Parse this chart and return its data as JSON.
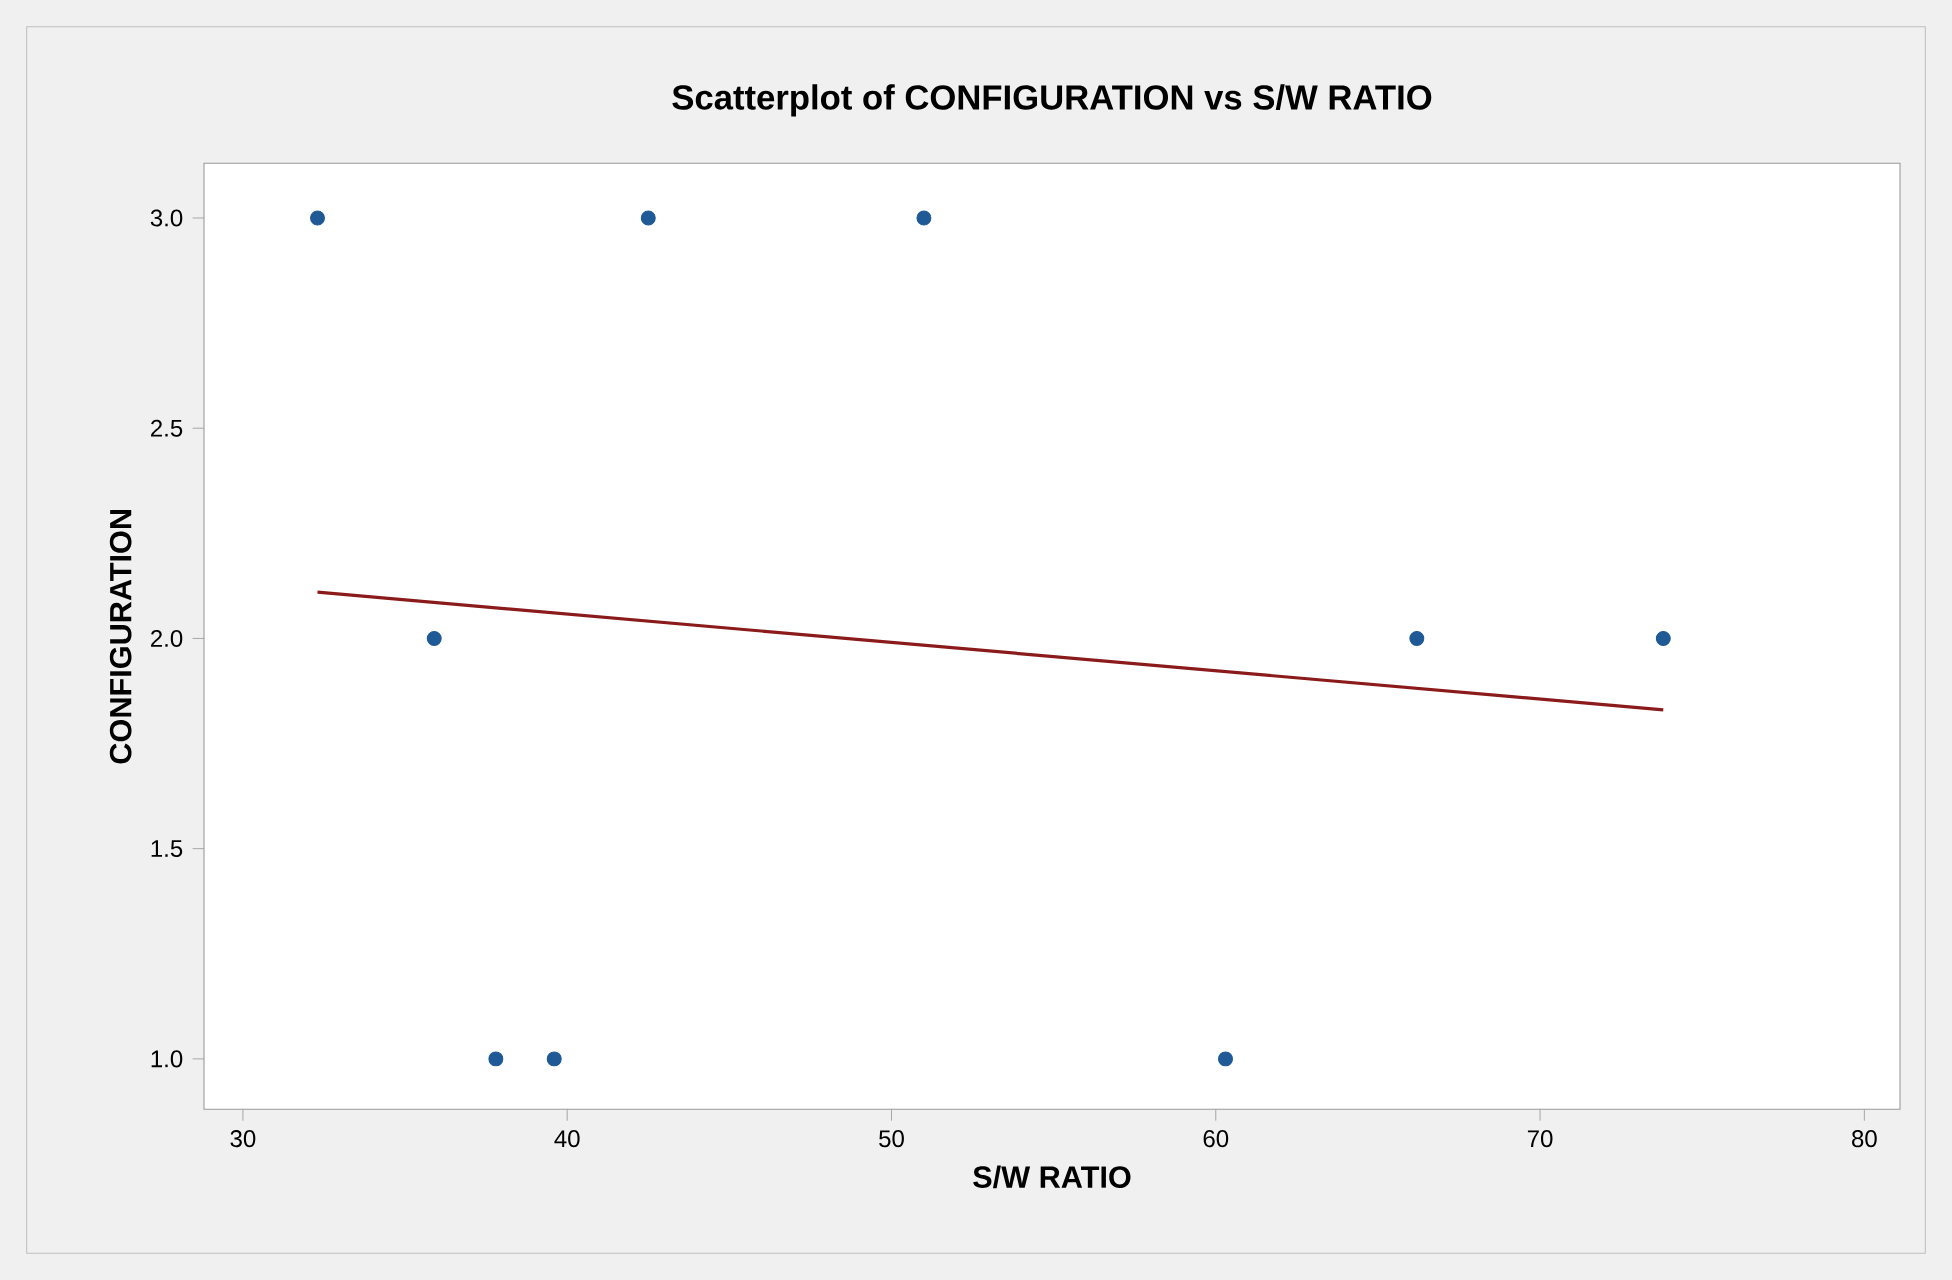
{
  "chart_data": {
    "type": "scatter",
    "title": "Scatterplot of CONFIGURATION vs S/W RATIO",
    "xlabel": "S/W RATIO",
    "ylabel": "CONFIGURATION",
    "series": [
      {
        "color": "#1f5a96",
        "marker": "circle",
        "x": [
          32.3,
          35.9,
          37.8,
          39.6,
          42.5,
          51.0,
          60.3,
          66.2,
          73.8
        ],
        "values": [
          3,
          2,
          1,
          1,
          3,
          3,
          1,
          2,
          2
        ]
      },
      {
        "type": "line",
        "color": "#8b1a1a",
        "marker": "none",
        "x": [
          32.3,
          73.8
        ],
        "values": [
          2.11,
          1.83
        ]
      }
    ],
    "xlim": [
      28.8,
      81.1
    ],
    "ylim": [
      0.88,
      3.13
    ],
    "xticks": [
      30,
      40,
      50,
      60,
      70,
      80
    ],
    "yticks": [
      {
        "value": 1.0,
        "label": "1.0"
      },
      {
        "value": 1.5,
        "label": "1.5"
      },
      {
        "value": 2.0,
        "label": "2.0"
      },
      {
        "value": 2.5,
        "label": "2.5"
      },
      {
        "value": 3.0,
        "label": "3.0"
      }
    ],
    "grid": false
  }
}
